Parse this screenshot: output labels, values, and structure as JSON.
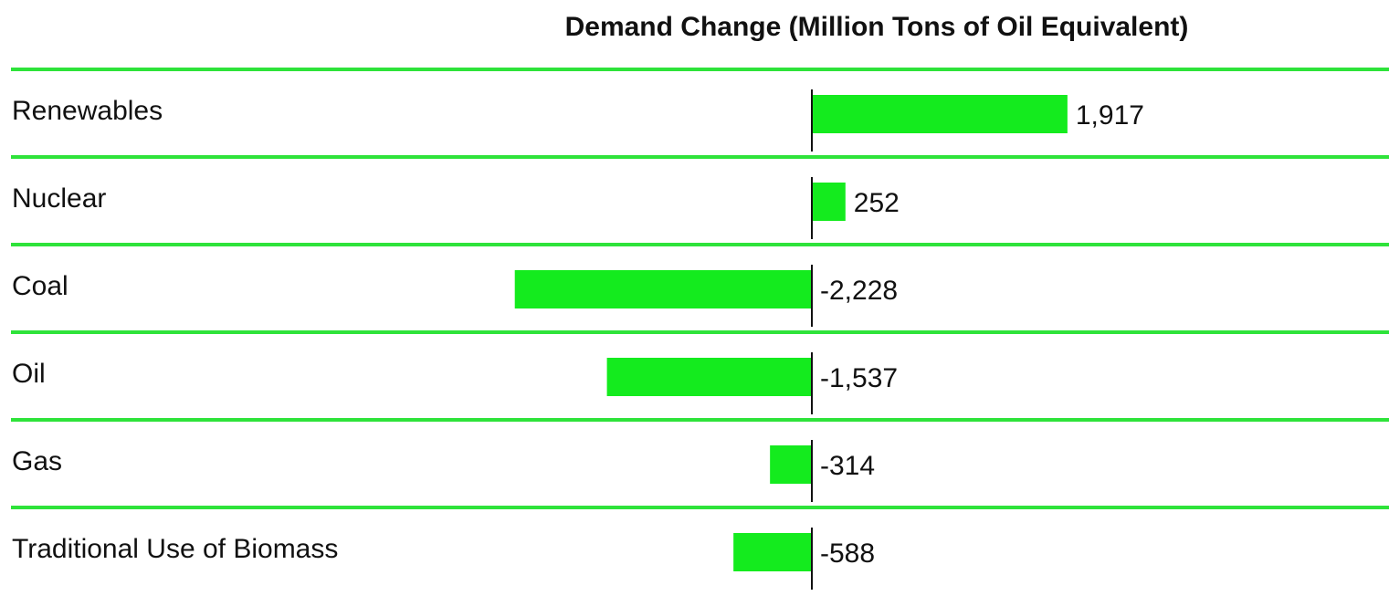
{
  "chart_data": {
    "type": "bar",
    "orientation": "horizontal",
    "title": "Demand Change (Million Tons of Oil Equivalent)",
    "categories": [
      "Renewables",
      "Nuclear",
      "Coal",
      "Oil",
      "Gas",
      "Traditional Use of Biomass"
    ],
    "values": [
      1917,
      252,
      -2228,
      -1537,
      -314,
      -588
    ],
    "value_labels": [
      "1,917",
      "252",
      "-2,228",
      "-1,537",
      "-314",
      "-588"
    ],
    "color": "#14eb1e",
    "xlim": [
      -3000,
      3000
    ]
  }
}
